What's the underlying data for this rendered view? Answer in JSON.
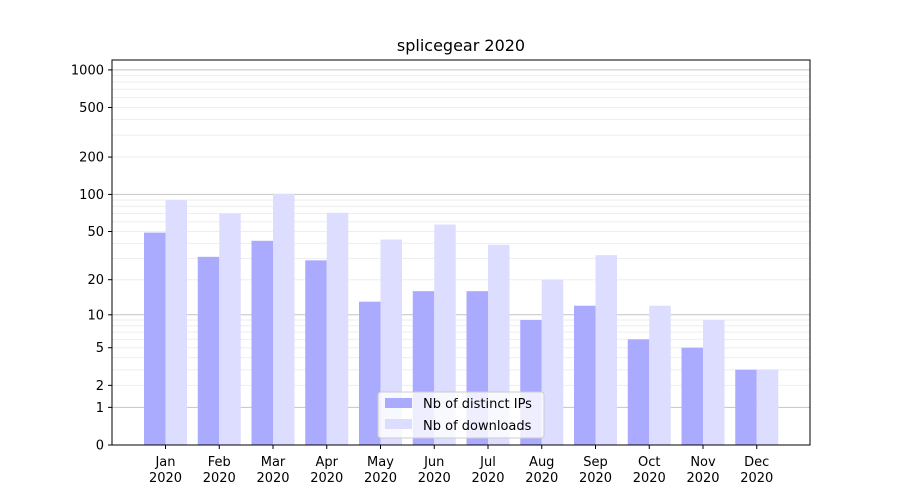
{
  "chart_data": {
    "type": "bar",
    "title": "splicegear 2020",
    "xlabel": "",
    "ylabel": "",
    "y_scale": "symlog",
    "ylim": [
      0,
      1200
    ],
    "y_ticks": [
      0,
      1,
      2,
      5,
      10,
      20,
      50,
      100,
      200,
      500,
      1000
    ],
    "y_tick_labels": [
      "0",
      "1",
      "2",
      "5",
      "10",
      "20",
      "50",
      "100",
      "200",
      "500",
      "1000"
    ],
    "grid": true,
    "legend_position": "bottom-center",
    "categories": [
      "Jan\n2020",
      "Feb\n2020",
      "Mar\n2020",
      "Apr\n2020",
      "May\n2020",
      "Jun\n2020",
      "Jul\n2020",
      "Aug\n2020",
      "Sep\n2020",
      "Oct\n2020",
      "Nov\n2020",
      "Dec\n2020"
    ],
    "category_lines": [
      [
        "Jan",
        "2020"
      ],
      [
        "Feb",
        "2020"
      ],
      [
        "Mar",
        "2020"
      ],
      [
        "Apr",
        "2020"
      ],
      [
        "May",
        "2020"
      ],
      [
        "Jun",
        "2020"
      ],
      [
        "Jul",
        "2020"
      ],
      [
        "Aug",
        "2020"
      ],
      [
        "Sep",
        "2020"
      ],
      [
        "Oct",
        "2020"
      ],
      [
        "Nov",
        "2020"
      ],
      [
        "Dec",
        "2020"
      ]
    ],
    "series": [
      {
        "name": "Nb of distinct IPs",
        "color": "#aaaaff",
        "values": [
          49,
          31,
          42,
          29,
          13,
          16,
          16,
          9,
          12,
          6,
          5,
          3
        ]
      },
      {
        "name": "Nb of downloads",
        "color": "#ddddff",
        "values": [
          90,
          70,
          101,
          71,
          43,
          57,
          39,
          20,
          32,
          12,
          9,
          3
        ]
      }
    ]
  }
}
